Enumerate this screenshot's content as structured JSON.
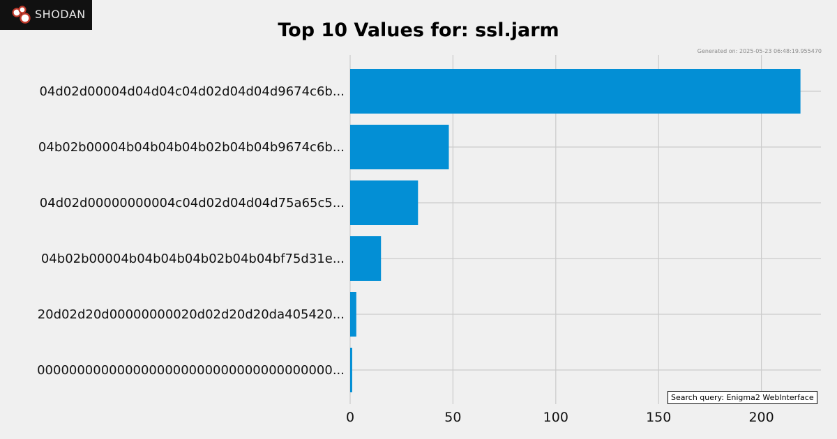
{
  "logo": {
    "text": "SHODAN",
    "icon": "shodan-logo-icon"
  },
  "generated_text": "Generated on: 2025-05-23 06:48:19.955470",
  "query_text": "Search query: Enigma2 WebInterface",
  "colors": {
    "bar": "#038fd5",
    "grid": "#cbcbcb",
    "background": "#f0f0f0"
  },
  "chart_data": {
    "type": "bar",
    "orientation": "horizontal",
    "title": "Top 10 Values for: ssl.jarm",
    "xlabel": "",
    "ylabel": "",
    "categories": [
      "04d02d00004d04d04c04d02d04d04d9674c6b...",
      "04b02b00004b04b04b04b02b04b04b9674c6b...",
      "04d02d00000000004c04d02d04d04d75a65c5...",
      "04b02b00004b04b04b04b02b04b04bf75d31e...",
      "20d02d20d00000000020d02d20d20da405420...",
      "0000000000000000000000000000000000000..."
    ],
    "values": [
      219,
      48,
      33,
      15,
      3,
      1
    ],
    "xlim": [
      0,
      229
    ],
    "xticks": [
      0,
      50,
      100,
      150,
      200
    ],
    "grid": true
  }
}
